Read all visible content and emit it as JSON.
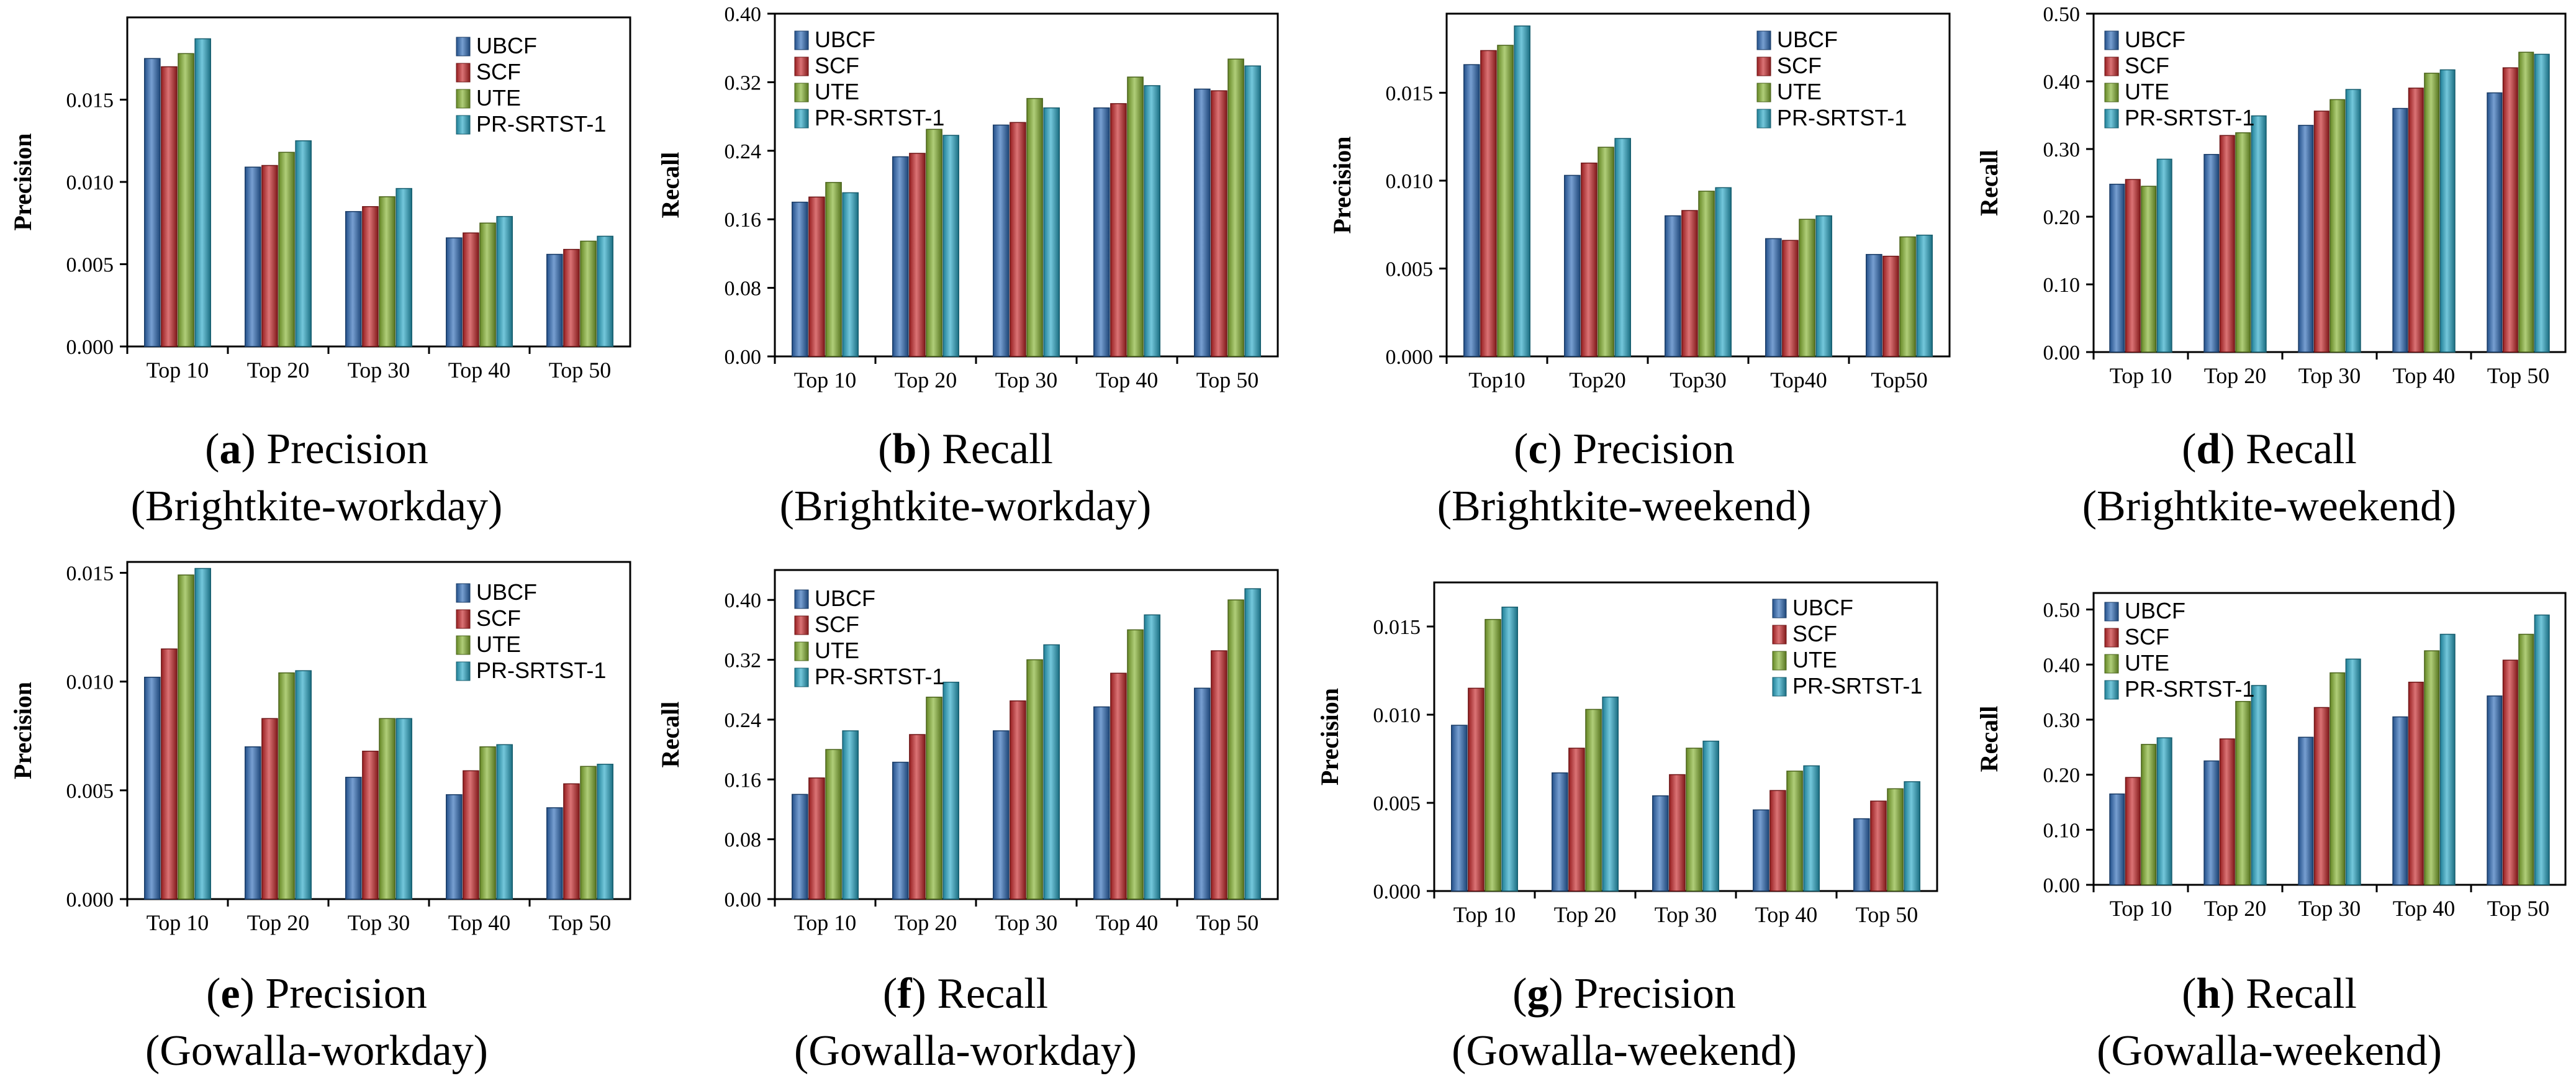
{
  "legend_series": [
    "UBCF",
    "SCF",
    "UTE",
    "PR-SRTST-1"
  ],
  "series_colors": [
    "#2E6BB8",
    "#C8282A",
    "#86B431",
    "#29A9C8"
  ],
  "chart_data": [
    {
      "id": "a",
      "type": "bar",
      "categories": [
        "Top 10",
        "Top 20",
        "Top 30",
        "Top 40",
        "Top 50"
      ],
      "ylabel": "Precision",
      "xlabel": "",
      "ylim": [
        0,
        0.02
      ],
      "yticks": [
        "0.000",
        "0.005",
        "0.010",
        "0.015"
      ],
      "legend_position": "top-right",
      "series": [
        {
          "name": "UBCF",
          "values": [
            0.0175,
            0.0109,
            0.0082,
            0.0066,
            0.0056
          ]
        },
        {
          "name": "SCF",
          "values": [
            0.017,
            0.011,
            0.0085,
            0.0069,
            0.0059
          ]
        },
        {
          "name": "UTE",
          "values": [
            0.0178,
            0.0118,
            0.0091,
            0.0075,
            0.0064
          ]
        },
        {
          "name": "PR-SRTST-1",
          "values": [
            0.0187,
            0.0125,
            0.0096,
            0.0079,
            0.0067
          ]
        }
      ],
      "caption": {
        "letter": "a",
        "metric": "Precision",
        "dataset": "(Brightkite-workday)"
      }
    },
    {
      "id": "b",
      "type": "bar",
      "categories": [
        "Top 10",
        "Top 20",
        "Top 30",
        "Top 40",
        "Top 50"
      ],
      "ylabel": "Recall",
      "xlabel": "",
      "ylim": [
        0,
        0.4
      ],
      "yticks": [
        "0.00",
        "0.08",
        "0.16",
        "0.24",
        "0.32",
        "0.40"
      ],
      "legend_position": "top-left",
      "series": [
        {
          "name": "UBCF",
          "values": [
            0.18,
            0.233,
            0.27,
            0.29,
            0.312
          ]
        },
        {
          "name": "SCF",
          "values": [
            0.186,
            0.237,
            0.273,
            0.295,
            0.31
          ]
        },
        {
          "name": "UTE",
          "values": [
            0.203,
            0.265,
            0.301,
            0.326,
            0.347
          ]
        },
        {
          "name": "PR-SRTST-1",
          "values": [
            0.191,
            0.258,
            0.29,
            0.316,
            0.339
          ]
        }
      ],
      "caption": {
        "letter": "b",
        "metric": "Recall",
        "dataset": "(Brightkite-workday)"
      }
    },
    {
      "id": "c",
      "type": "bar",
      "categories": [
        "Top10",
        "Top20",
        "Top30",
        "Top40",
        "Top50"
      ],
      "ylabel": "Precision",
      "xlabel": "",
      "ylim": [
        0,
        0.0195
      ],
      "yticks": [
        "0.000",
        "0.005",
        "0.010",
        "0.015"
      ],
      "legend_position": "top-right",
      "series": [
        {
          "name": "UBCF",
          "values": [
            0.0166,
            0.0103,
            0.008,
            0.0067,
            0.0058
          ]
        },
        {
          "name": "SCF",
          "values": [
            0.0174,
            0.011,
            0.0083,
            0.0066,
            0.0057
          ]
        },
        {
          "name": "UTE",
          "values": [
            0.0177,
            0.0119,
            0.0094,
            0.0078,
            0.0068
          ]
        },
        {
          "name": "PR-SRTST-1",
          "values": [
            0.0188,
            0.0124,
            0.0096,
            0.008,
            0.0069
          ]
        }
      ],
      "caption": {
        "letter": "c",
        "metric": "Precision",
        "dataset": "(Brightkite-weekend)"
      }
    },
    {
      "id": "d",
      "type": "bar",
      "categories": [
        "Top 10",
        "Top 20",
        "Top 30",
        "Top 40",
        "Top 50"
      ],
      "ylabel": "Recall",
      "xlabel": "",
      "ylim": [
        0,
        0.5
      ],
      "yticks": [
        "0.00",
        "0.10",
        "0.20",
        "0.30",
        "0.40",
        "0.50"
      ],
      "legend_position": "top-left",
      "series": [
        {
          "name": "UBCF",
          "values": [
            0.248,
            0.292,
            0.335,
            0.36,
            0.383
          ]
        },
        {
          "name": "SCF",
          "values": [
            0.255,
            0.32,
            0.356,
            0.39,
            0.42
          ]
        },
        {
          "name": "UTE",
          "values": [
            0.245,
            0.324,
            0.373,
            0.412,
            0.443
          ]
        },
        {
          "name": "PR-SRTST-1",
          "values": [
            0.285,
            0.349,
            0.388,
            0.417,
            0.44
          ]
        }
      ],
      "caption": {
        "letter": "d",
        "metric": "Recall",
        "dataset": "(Brightkite-weekend)"
      }
    },
    {
      "id": "e",
      "type": "bar",
      "categories": [
        "Top 10",
        "Top 20",
        "Top 30",
        "Top 40",
        "Top 50"
      ],
      "ylabel": "Precision",
      "xlabel": "",
      "ylim": [
        0,
        0.0155
      ],
      "yticks": [
        "0.000",
        "0.005",
        "0.010",
        "0.015"
      ],
      "legend_position": "top-right",
      "series": [
        {
          "name": "UBCF",
          "values": [
            0.0102,
            0.007,
            0.0056,
            0.0048,
            0.0042
          ]
        },
        {
          "name": "SCF",
          "values": [
            0.0115,
            0.0083,
            0.0068,
            0.0059,
            0.0053
          ]
        },
        {
          "name": "UTE",
          "values": [
            0.0149,
            0.0104,
            0.0083,
            0.007,
            0.0061
          ]
        },
        {
          "name": "PR-SRTST-1",
          "values": [
            0.0152,
            0.0105,
            0.0083,
            0.0071,
            0.0062
          ]
        }
      ],
      "caption": {
        "letter": "e",
        "metric": "Precision",
        "dataset": "(Gowalla-workday)"
      }
    },
    {
      "id": "f",
      "type": "bar",
      "categories": [
        "Top 10",
        "Top 20",
        "Top 30",
        "Top 40",
        "Top 50"
      ],
      "ylabel": "Recall",
      "xlabel": "",
      "ylim": [
        0,
        0.44
      ],
      "yticks": [
        "0.00",
        "0.08",
        "0.16",
        "0.24",
        "0.32",
        "0.40"
      ],
      "legend_position": "top-left",
      "series": [
        {
          "name": "UBCF",
          "values": [
            0.14,
            0.183,
            0.225,
            0.257,
            0.282
          ]
        },
        {
          "name": "SCF",
          "values": [
            0.162,
            0.22,
            0.265,
            0.302,
            0.332
          ]
        },
        {
          "name": "UTE",
          "values": [
            0.2,
            0.27,
            0.32,
            0.36,
            0.4
          ]
        },
        {
          "name": "PR-SRTST-1",
          "values": [
            0.225,
            0.29,
            0.34,
            0.38,
            0.415
          ]
        }
      ],
      "caption": {
        "letter": "f",
        "metric": "Recall",
        "dataset": "(Gowalla-workday)"
      }
    },
    {
      "id": "g",
      "type": "bar",
      "categories": [
        "Top 10",
        "Top 20",
        "Top 30",
        "Top 40",
        "Top 50"
      ],
      "ylabel": "Precision",
      "xlabel": "",
      "ylim": [
        0,
        0.0175
      ],
      "yticks": [
        "0.000",
        "0.005",
        "0.010",
        "0.015"
      ],
      "legend_position": "top-right",
      "series": [
        {
          "name": "UBCF",
          "values": [
            0.0094,
            0.0067,
            0.0054,
            0.0046,
            0.0041
          ]
        },
        {
          "name": "SCF",
          "values": [
            0.0115,
            0.0081,
            0.0066,
            0.0057,
            0.0051
          ]
        },
        {
          "name": "UTE",
          "values": [
            0.0154,
            0.0103,
            0.0081,
            0.0068,
            0.0058
          ]
        },
        {
          "name": "PR-SRTST-1",
          "values": [
            0.0161,
            0.011,
            0.0085,
            0.0071,
            0.0062
          ]
        }
      ],
      "caption": {
        "letter": "g",
        "metric": "Precision",
        "dataset": "(Gowalla-weekend)"
      }
    },
    {
      "id": "h",
      "type": "bar",
      "categories": [
        "Top 10",
        "Top 20",
        "Top 30",
        "Top 40",
        "Top 50"
      ],
      "ylabel": "Recall",
      "xlabel": "",
      "ylim": [
        0,
        0.53
      ],
      "yticks": [
        "0.00",
        "0.10",
        "0.20",
        "0.30",
        "0.40",
        "0.50"
      ],
      "legend_position": "top-left",
      "series": [
        {
          "name": "UBCF",
          "values": [
            0.165,
            0.225,
            0.268,
            0.305,
            0.343
          ]
        },
        {
          "name": "SCF",
          "values": [
            0.195,
            0.265,
            0.322,
            0.368,
            0.408
          ]
        },
        {
          "name": "UTE",
          "values": [
            0.255,
            0.333,
            0.385,
            0.425,
            0.455
          ]
        },
        {
          "name": "PR-SRTST-1",
          "values": [
            0.267,
            0.362,
            0.41,
            0.455,
            0.49
          ]
        }
      ],
      "caption": {
        "letter": "h",
        "metric": "Recall",
        "dataset": "(Gowalla-weekend)"
      }
    }
  ]
}
